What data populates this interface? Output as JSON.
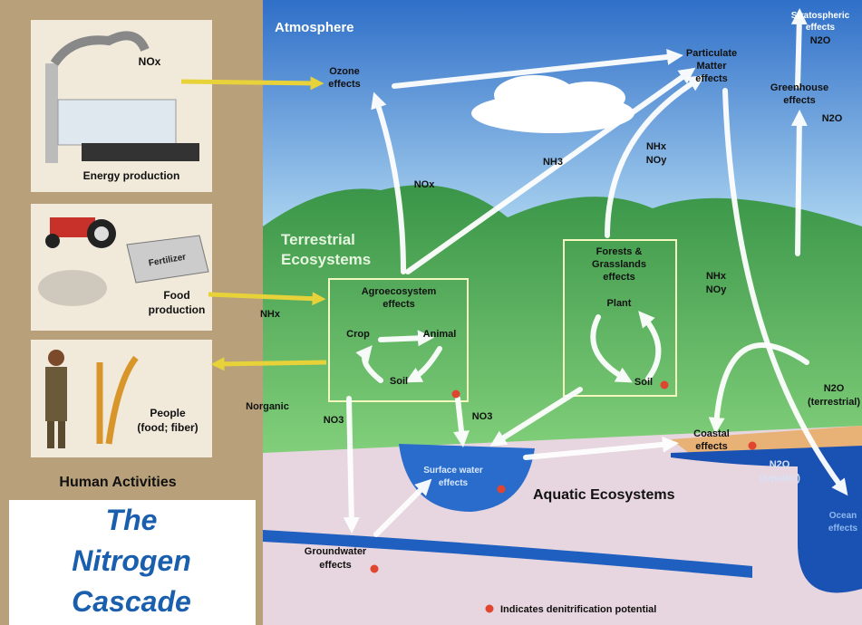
{
  "left_panel": {
    "energy": {
      "emission": "NOx",
      "label": "Energy production"
    },
    "food": {
      "fertilizer": "Fertilizer",
      "label": [
        "Food",
        "production"
      ]
    },
    "people": {
      "label": [
        "People",
        "(food; fiber)"
      ]
    },
    "heading": "Human Activities",
    "title": [
      "The",
      "Nitrogen",
      "Cascade"
    ]
  },
  "diagram": {
    "atmosphere": "Atmosphere",
    "ozone": [
      "Ozone",
      "effects"
    ],
    "particulate": [
      "Particulate",
      "Matter",
      "effects"
    ],
    "stratospheric": [
      "Stratospheric",
      "effects"
    ],
    "n2o_strat": "N2O",
    "greenhouse": [
      "Greenhouse",
      "effects"
    ],
    "n2o_green": "N2O",
    "nox": "NOx",
    "nh3": "NH3",
    "nhx_noy_mid": [
      "NHx",
      "NOy"
    ],
    "terrestrial": [
      "Terrestrial",
      "Ecosystems"
    ],
    "nhx_food": "NHx",
    "agro": {
      "title": [
        "Agroecosystem",
        "effects"
      ],
      "crop": "Crop",
      "animal": "Animal",
      "soil": "Soil"
    },
    "forests": {
      "title": [
        "Forests &",
        "Grasslands",
        "effects"
      ],
      "plant": "Plant",
      "soil": "Soil"
    },
    "nhx_noy_right": [
      "NHx",
      "NOy"
    ],
    "n2o_terrestrial": [
      "N2O",
      "(terrestrial)"
    ],
    "n_organic": "Norganic",
    "no3_left": "NO3",
    "no3_right": "NO3",
    "coastal": [
      "Coastal",
      "effects"
    ],
    "surface_water": [
      "Surface water",
      "effects"
    ],
    "aquatic": "Aquatic Ecosystems",
    "n2o_aquatic": [
      "N2O",
      "(aquatic)"
    ],
    "ocean": [
      "Ocean",
      "effects"
    ],
    "groundwater": [
      "Groundwater",
      "effects"
    ],
    "legend": "Indicates denitrification potential"
  }
}
